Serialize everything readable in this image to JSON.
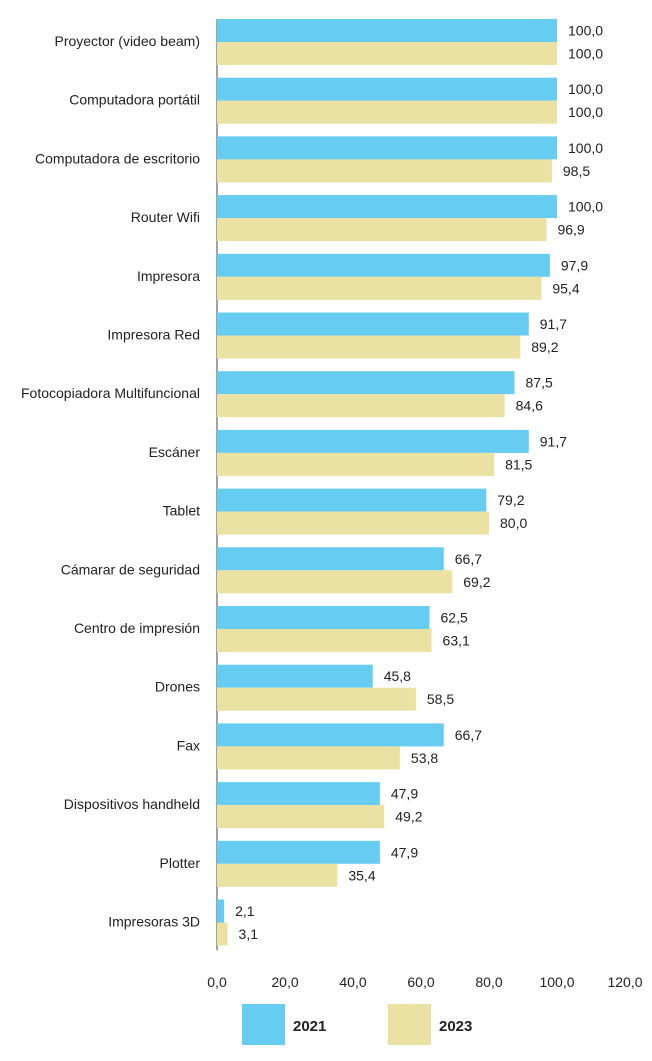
{
  "chart_data": {
    "type": "bar",
    "orientation": "horizontal",
    "title": "",
    "xlabel": "",
    "ylabel": "",
    "xlim": [
      0,
      120
    ],
    "x_ticks": [
      "0,0",
      "20,0",
      "40,0",
      "60,0",
      "80,0",
      "100,0",
      "120,0"
    ],
    "grid": false,
    "legend_position": "bottom",
    "categories": [
      "Proyector (video beam)",
      "Computadora portátil",
      "Computadora de escritorio",
      "Router Wifi",
      "Impresora",
      "Impresora Red",
      "Fotocopiadora Multifuncional",
      "Escáner",
      "Tablet",
      "Cámarar de seguridad",
      "Centro de impresión",
      "Drones",
      "Fax",
      "Dispositivos handheld",
      "Plotter",
      "Impresoras 3D"
    ],
    "series": [
      {
        "name": "2021",
        "color": "#66ccf2",
        "values": [
          100.0,
          100.0,
          100.0,
          100.0,
          97.9,
          91.7,
          87.5,
          91.7,
          79.2,
          66.7,
          62.5,
          45.8,
          66.7,
          47.9,
          47.9,
          2.1
        ],
        "labels": [
          "100,0",
          "100,0",
          "100,0",
          "100,0",
          "97,9",
          "91,7",
          "87,5",
          "91,7",
          "79,2",
          "66,7",
          "62,5",
          "45,8",
          "66,7",
          "47,9",
          "47,9",
          "2,1"
        ]
      },
      {
        "name": "2023",
        "color": "#ebe1a3",
        "values": [
          100.0,
          100.0,
          98.5,
          96.9,
          95.4,
          89.2,
          84.6,
          81.5,
          80.0,
          69.2,
          63.1,
          58.5,
          53.8,
          49.2,
          35.4,
          3.1
        ],
        "labels": [
          "100,0",
          "100,0",
          "98,5",
          "96,9",
          "95,4",
          "89,2",
          "84,6",
          "81,5",
          "80,0",
          "69,2",
          "63,1",
          "58,5",
          "53,8",
          "49,2",
          "35,4",
          "3,1"
        ]
      }
    ]
  }
}
